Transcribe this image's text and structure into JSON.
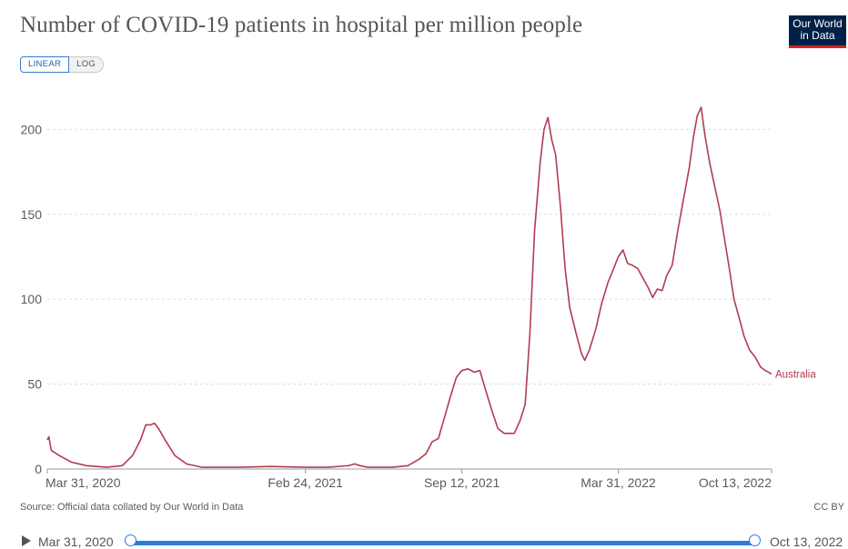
{
  "header": {
    "title": "Number of COVID-19 patients in hospital per million people",
    "logo_line1": "Our World",
    "logo_line2": "in Data"
  },
  "scale_toggle": {
    "linear_label": "LINEAR",
    "log_label": "LOG",
    "selected": "LINEAR"
  },
  "footer": {
    "source": "Source: Official data collated by Our World in Data",
    "license": "CC BY"
  },
  "timeline": {
    "start_label": "Mar 31, 2020",
    "end_label": "Oct 13, 2022"
  },
  "colors": {
    "series": "#b13c50",
    "grid": "#dddddd",
    "axis_text": "#5b5b5b",
    "slider": "#2f7bd8"
  },
  "chart_data": {
    "type": "line",
    "title": "Number of COVID-19 patients in hospital per million people",
    "x_type": "date",
    "xlim": [
      "2020-03-31",
      "2022-10-13"
    ],
    "ylim": [
      0,
      220
    ],
    "grid": true,
    "y_ticks": [
      0,
      50,
      100,
      150,
      200
    ],
    "x_ticks": [
      {
        "date": "2020-03-31",
        "label": "Mar 31, 2020"
      },
      {
        "date": "2021-02-24",
        "label": "Feb 24, 2021"
      },
      {
        "date": "2021-09-12",
        "label": "Sep 12, 2021"
      },
      {
        "date": "2022-03-31",
        "label": "Mar 31, 2022"
      },
      {
        "date": "2022-10-13",
        "label": "Oct 13, 2022"
      }
    ],
    "series": [
      {
        "name": "Australia",
        "points": [
          {
            "x": "2020-03-31",
            "y": 17
          },
          {
            "x": "2020-04-02",
            "y": 19
          },
          {
            "x": "2020-04-05",
            "y": 11
          },
          {
            "x": "2020-04-15",
            "y": 8
          },
          {
            "x": "2020-05-01",
            "y": 4
          },
          {
            "x": "2020-05-20",
            "y": 2
          },
          {
            "x": "2020-06-15",
            "y": 1
          },
          {
            "x": "2020-07-05",
            "y": 2
          },
          {
            "x": "2020-07-18",
            "y": 8
          },
          {
            "x": "2020-07-28",
            "y": 17
          },
          {
            "x": "2020-08-04",
            "y": 26
          },
          {
            "x": "2020-08-10",
            "y": 26
          },
          {
            "x": "2020-08-15",
            "y": 27
          },
          {
            "x": "2020-08-20",
            "y": 24
          },
          {
            "x": "2020-08-30",
            "y": 16
          },
          {
            "x": "2020-09-10",
            "y": 8
          },
          {
            "x": "2020-09-25",
            "y": 3
          },
          {
            "x": "2020-10-15",
            "y": 1
          },
          {
            "x": "2020-12-01",
            "y": 1
          },
          {
            "x": "2021-01-10",
            "y": 1.5
          },
          {
            "x": "2021-02-24",
            "y": 1
          },
          {
            "x": "2021-03-25",
            "y": 1
          },
          {
            "x": "2021-04-20",
            "y": 2
          },
          {
            "x": "2021-04-28",
            "y": 3
          },
          {
            "x": "2021-05-05",
            "y": 2
          },
          {
            "x": "2021-05-15",
            "y": 1
          },
          {
            "x": "2021-06-15",
            "y": 1
          },
          {
            "x": "2021-07-05",
            "y": 2
          },
          {
            "x": "2021-07-20",
            "y": 6
          },
          {
            "x": "2021-07-28",
            "y": 9
          },
          {
            "x": "2021-08-05",
            "y": 16
          },
          {
            "x": "2021-08-13",
            "y": 18
          },
          {
            "x": "2021-08-20",
            "y": 29
          },
          {
            "x": "2021-08-28",
            "y": 42
          },
          {
            "x": "2021-09-05",
            "y": 54
          },
          {
            "x": "2021-09-12",
            "y": 58
          },
          {
            "x": "2021-09-20",
            "y": 59
          },
          {
            "x": "2021-09-28",
            "y": 57
          },
          {
            "x": "2021-10-05",
            "y": 58
          },
          {
            "x": "2021-10-12",
            "y": 47
          },
          {
            "x": "2021-10-20",
            "y": 35
          },
          {
            "x": "2021-10-28",
            "y": 24
          },
          {
            "x": "2021-11-05",
            "y": 21
          },
          {
            "x": "2021-11-12",
            "y": 21
          },
          {
            "x": "2021-11-18",
            "y": 21
          },
          {
            "x": "2021-11-25",
            "y": 28
          },
          {
            "x": "2021-12-02",
            "y": 38
          },
          {
            "x": "2021-12-08",
            "y": 80
          },
          {
            "x": "2021-12-14",
            "y": 140
          },
          {
            "x": "2021-12-21",
            "y": 180
          },
          {
            "x": "2021-12-26",
            "y": 200
          },
          {
            "x": "2021-12-31",
            "y": 207
          },
          {
            "x": "2022-01-05",
            "y": 194
          },
          {
            "x": "2022-01-10",
            "y": 185
          },
          {
            "x": "2022-01-16",
            "y": 155
          },
          {
            "x": "2022-01-22",
            "y": 118
          },
          {
            "x": "2022-01-28",
            "y": 95
          },
          {
            "x": "2022-02-05",
            "y": 80
          },
          {
            "x": "2022-02-12",
            "y": 68
          },
          {
            "x": "2022-02-16",
            "y": 64
          },
          {
            "x": "2022-02-22",
            "y": 70
          },
          {
            "x": "2022-03-02",
            "y": 82
          },
          {
            "x": "2022-03-10",
            "y": 98
          },
          {
            "x": "2022-03-18",
            "y": 110
          },
          {
            "x": "2022-03-25",
            "y": 118
          },
          {
            "x": "2022-03-31",
            "y": 125
          },
          {
            "x": "2022-04-06",
            "y": 129
          },
          {
            "x": "2022-04-12",
            "y": 121
          },
          {
            "x": "2022-04-18",
            "y": 120
          },
          {
            "x": "2022-04-25",
            "y": 118
          },
          {
            "x": "2022-05-02",
            "y": 112
          },
          {
            "x": "2022-05-08",
            "y": 107
          },
          {
            "x": "2022-05-14",
            "y": 101
          },
          {
            "x": "2022-05-20",
            "y": 106
          },
          {
            "x": "2022-05-26",
            "y": 105
          },
          {
            "x": "2022-06-01",
            "y": 114
          },
          {
            "x": "2022-06-08",
            "y": 120
          },
          {
            "x": "2022-06-15",
            "y": 140
          },
          {
            "x": "2022-06-22",
            "y": 158
          },
          {
            "x": "2022-06-30",
            "y": 178
          },
          {
            "x": "2022-07-05",
            "y": 195
          },
          {
            "x": "2022-07-10",
            "y": 208
          },
          {
            "x": "2022-07-15",
            "y": 213
          },
          {
            "x": "2022-07-20",
            "y": 196
          },
          {
            "x": "2022-07-26",
            "y": 180
          },
          {
            "x": "2022-08-02",
            "y": 165
          },
          {
            "x": "2022-08-08",
            "y": 152
          },
          {
            "x": "2022-08-14",
            "y": 135
          },
          {
            "x": "2022-08-20",
            "y": 118
          },
          {
            "x": "2022-08-26",
            "y": 100
          },
          {
            "x": "2022-09-01",
            "y": 90
          },
          {
            "x": "2022-09-08",
            "y": 78
          },
          {
            "x": "2022-09-15",
            "y": 70
          },
          {
            "x": "2022-09-22",
            "y": 66
          },
          {
            "x": "2022-09-29",
            "y": 60
          },
          {
            "x": "2022-10-05",
            "y": 58
          },
          {
            "x": "2022-10-13",
            "y": 56
          }
        ]
      }
    ]
  }
}
